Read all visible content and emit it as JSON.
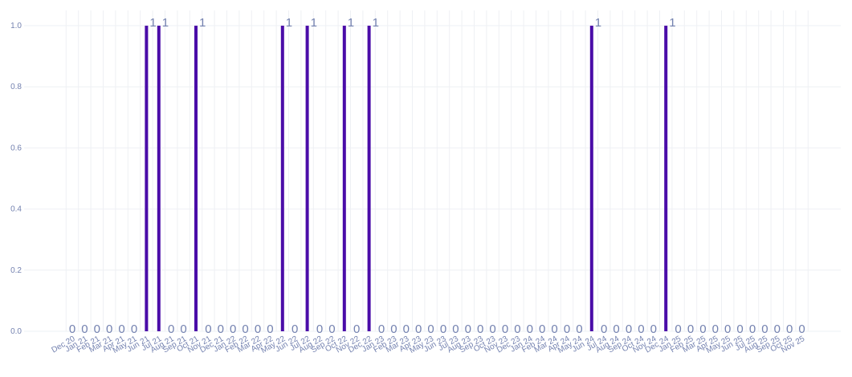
{
  "chart_data": {
    "type": "bar",
    "categories": [
      "Dec 20",
      "Jan 21",
      "Feb 21",
      "Mar 21",
      "Apr 21",
      "May 21",
      "Jun 21",
      "Jul 21",
      "Aug 21",
      "Sep 21",
      "Oct 21",
      "Nov 21",
      "Dec 21",
      "Jan 22",
      "Feb 22",
      "Mar 22",
      "Apr 22",
      "May 22",
      "Jun 22",
      "Jul 22",
      "Aug 22",
      "Sep 22",
      "Oct 22",
      "Nov 22",
      "Dec 22",
      "Jan 23",
      "Feb 23",
      "Mar 23",
      "Apr 23",
      "May 23",
      "Jun 23",
      "Jul 23",
      "Aug 23",
      "Sep 23",
      "Oct 23",
      "Nov 23",
      "Dec 23",
      "Jan 24",
      "Feb 24",
      "Mar 24",
      "Apr 24",
      "May 24",
      "Jun 24",
      "Jul 24",
      "Aug 24",
      "Sep 24",
      "Oct 24",
      "Nov 24",
      "Dec 24",
      "Jan 25",
      "Feb 25",
      "Mar 25",
      "Apr 25",
      "May 25",
      "Jun 25",
      "Jul 25",
      "Aug 25",
      "Sep 25",
      "Oct 25",
      "Nov 25"
    ],
    "values": [
      0,
      0,
      0,
      0,
      0,
      0,
      1,
      1,
      0,
      0,
      1,
      0,
      0,
      0,
      0,
      0,
      0,
      1,
      0,
      1,
      0,
      0,
      1,
      0,
      1,
      0,
      0,
      0,
      0,
      0,
      0,
      0,
      0,
      0,
      0,
      0,
      0,
      0,
      0,
      0,
      0,
      0,
      1,
      0,
      0,
      0,
      0,
      0,
      1,
      0,
      0,
      0,
      0,
      0,
      0,
      0,
      0,
      0,
      0,
      0
    ],
    "data_labels": [
      "0",
      "0",
      "0",
      "0",
      "0",
      "0",
      "1",
      "1",
      "0",
      "0",
      "1",
      "0",
      "0",
      "0",
      "0",
      "0",
      "0",
      "1",
      "0",
      "1",
      "0",
      "0",
      "1",
      "0",
      "1",
      "0",
      "0",
      "0",
      "0",
      "0",
      "0",
      "0",
      "0",
      "0",
      "0",
      "0",
      "0",
      "0",
      "0",
      "0",
      "0",
      "0",
      "1",
      "0",
      "0",
      "0",
      "0",
      "0",
      "1",
      "0",
      "0",
      "0",
      "0",
      "0",
      "0",
      "0",
      "0",
      "0",
      "0",
      "0"
    ],
    "y_ticks": [
      "0.0",
      "0.2",
      "0.4",
      "0.6",
      "0.8",
      "1.0"
    ],
    "y_tick_values": [
      0,
      0.2,
      0.4,
      0.6,
      0.8,
      1.0
    ],
    "ylim": [
      0,
      1.05
    ],
    "grid": true,
    "title": "",
    "xlabel": "",
    "ylabel": "",
    "colors": {
      "bar": "#4a0ca8",
      "label": "#7482b0",
      "tick": "#7482b0",
      "grid": "#eef0f4"
    }
  }
}
